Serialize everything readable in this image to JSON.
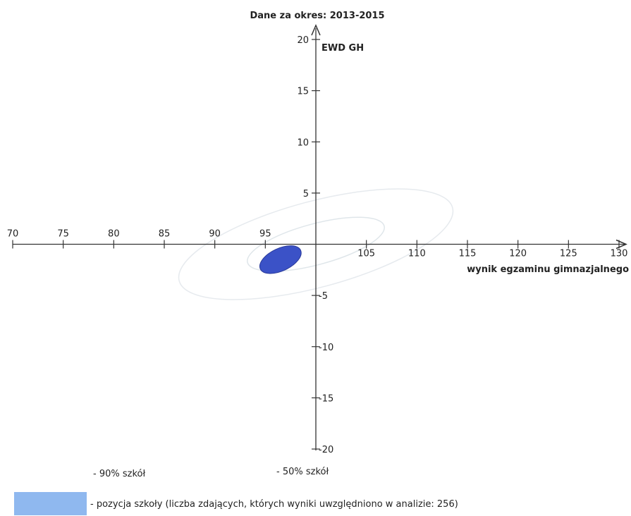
{
  "chart_data": {
    "type": "scatter",
    "title": "Dane za okres: 2013-2015",
    "xlabel": "wynik egzaminu gimnazjalnego",
    "ylabel": "EWD GH",
    "xlim": [
      70,
      130
    ],
    "ylim": [
      -20,
      20
    ],
    "origin": [
      100,
      0
    ],
    "x_ticks": [
      70,
      75,
      80,
      85,
      90,
      95,
      105,
      110,
      115,
      120,
      125,
      130
    ],
    "y_ticks": [
      20,
      15,
      10,
      5,
      -5,
      -10,
      -15,
      -20
    ],
    "grid": false,
    "ellipses": [
      {
        "name": "90% szkół",
        "center": [
          100,
          0
        ],
        "x_radius": 14,
        "y_radius": 4.2,
        "angle_deg": 15,
        "color": "#e6eaee"
      },
      {
        "name": "50% szkół",
        "center": [
          100,
          0
        ],
        "x_radius": 7,
        "y_radius": 2,
        "angle_deg": 15,
        "color": "#dfe6ea"
      },
      {
        "name": "pozycja szkoły",
        "center": [
          96.5,
          -1.5
        ],
        "x_radius": 2.2,
        "y_radius": 1.1,
        "angle_deg": 25,
        "color": "#3b52c7"
      }
    ]
  },
  "legend": {
    "ninety": "- 90% szkół",
    "fifty": "- 50% szkół",
    "school": "- pozycja szkoły (liczba zdających, których wyniki uwzględniono w analizie: 256)",
    "swatch_color": "#8fb8ef"
  }
}
